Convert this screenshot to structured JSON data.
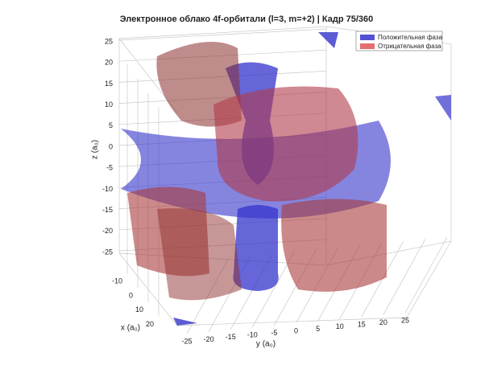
{
  "chart_data": {
    "type": "isosurface",
    "title": "Электронное облако 4f-орбитали (l=3, m=+2) | Кадр 75/360",
    "xlabel": "x (a₀)",
    "ylabel": "y (a₀)",
    "zlabel": "z (a₀)",
    "xticks": [
      -10,
      0,
      10,
      20
    ],
    "yticks": [
      -25,
      -20,
      -15,
      -10,
      -5,
      0,
      5,
      10,
      15,
      20,
      25
    ],
    "zticks": [
      -25,
      -20,
      -15,
      -10,
      -5,
      0,
      5,
      10,
      15,
      20,
      25
    ],
    "grid": true,
    "legend_position": "upper right",
    "series": [
      {
        "name": "Положительная фаза",
        "color": "#3333cc"
      },
      {
        "name": "Отрицательная фаза",
        "color": "#e05555"
      }
    ]
  }
}
